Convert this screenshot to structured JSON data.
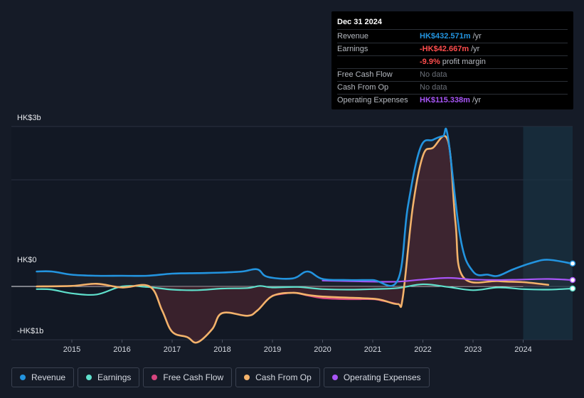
{
  "tooltip": {
    "date": "Dec 31 2024",
    "rows": [
      {
        "label": "Revenue",
        "value": "HK$432.571m",
        "unit": "/yr",
        "color": "#2394df"
      },
      {
        "label": "Earnings",
        "value": "-HK$42.667m",
        "unit": "/yr",
        "color": "#ff4d4d"
      },
      {
        "label": "",
        "value": "-9.9%",
        "unit": "profit margin",
        "color": "#ff4d4d"
      },
      {
        "label": "Free Cash Flow",
        "value": "No data",
        "unit": "",
        "color": ""
      },
      {
        "label": "Cash From Op",
        "value": "No data",
        "unit": "",
        "color": ""
      },
      {
        "label": "Operating Expenses",
        "value": "HK$115.338m",
        "unit": "/yr",
        "color": "#a855f7"
      }
    ]
  },
  "axis": {
    "y_top": "HK$3b",
    "y_zero": "HK$0",
    "y_bottom": "-HK$1b"
  },
  "legend": [
    {
      "label": "Revenue",
      "color": "#2394df"
    },
    {
      "label": "Earnings",
      "color": "#5fe0cc"
    },
    {
      "label": "Free Cash Flow",
      "color": "#d6457f"
    },
    {
      "label": "Cash From Op",
      "color": "#f3b26b"
    },
    {
      "label": "Operating Expenses",
      "color": "#a855f7"
    }
  ],
  "chart_data": {
    "type": "line",
    "x_ticks": [
      "2015",
      "2016",
      "2017",
      "2018",
      "2019",
      "2020",
      "2021",
      "2022",
      "2023",
      "2024"
    ],
    "ylim": [
      -1,
      3
    ],
    "y_unit": "HK$ billions",
    "series": [
      {
        "name": "Revenue",
        "color": "#2394df",
        "points": [
          [
            2014.3,
            0.28
          ],
          [
            2014.6,
            0.28
          ],
          [
            2015.0,
            0.22
          ],
          [
            2015.5,
            0.2
          ],
          [
            2016.0,
            0.2
          ],
          [
            2016.5,
            0.2
          ],
          [
            2017.0,
            0.24
          ],
          [
            2017.5,
            0.25
          ],
          [
            2018.0,
            0.26
          ],
          [
            2018.4,
            0.28
          ],
          [
            2018.7,
            0.32
          ],
          [
            2018.9,
            0.18
          ],
          [
            2019.4,
            0.15
          ],
          [
            2019.7,
            0.28
          ],
          [
            2020.0,
            0.14
          ],
          [
            2020.5,
            0.12
          ],
          [
            2021.0,
            0.12
          ],
          [
            2021.5,
            0.12
          ],
          [
            2021.7,
            1.5
          ],
          [
            2021.95,
            2.6
          ],
          [
            2022.2,
            2.75
          ],
          [
            2022.4,
            2.82
          ],
          [
            2022.5,
            2.8
          ],
          [
            2022.75,
            0.9
          ],
          [
            2023.0,
            0.28
          ],
          [
            2023.3,
            0.22
          ],
          [
            2023.5,
            0.2
          ],
          [
            2023.8,
            0.32
          ],
          [
            2024.2,
            0.45
          ],
          [
            2024.5,
            0.5
          ],
          [
            2024.97,
            0.43
          ]
        ]
      },
      {
        "name": "Earnings",
        "color": "#5fe0cc",
        "points": [
          [
            2014.3,
            -0.05
          ],
          [
            2014.6,
            -0.06
          ],
          [
            2015.0,
            -0.13
          ],
          [
            2015.5,
            -0.15
          ],
          [
            2016.0,
            0.0
          ],
          [
            2016.5,
            -0.01
          ],
          [
            2017.0,
            -0.06
          ],
          [
            2017.5,
            -0.07
          ],
          [
            2018.0,
            -0.04
          ],
          [
            2018.5,
            -0.03
          ],
          [
            2018.75,
            0.01
          ],
          [
            2019.0,
            -0.02
          ],
          [
            2019.5,
            -0.01
          ],
          [
            2020.0,
            -0.05
          ],
          [
            2020.5,
            -0.06
          ],
          [
            2021.0,
            -0.05
          ],
          [
            2021.5,
            -0.03
          ],
          [
            2022.0,
            0.04
          ],
          [
            2022.5,
            -0.01
          ],
          [
            2023.0,
            -0.07
          ],
          [
            2023.5,
            -0.02
          ],
          [
            2024.0,
            -0.05
          ],
          [
            2024.5,
            -0.06
          ],
          [
            2024.97,
            -0.04
          ]
        ]
      },
      {
        "name": "Free Cash Flow",
        "color": "#d6457f",
        "points": [
          [
            2019.0,
            -0.17
          ],
          [
            2019.4,
            -0.12
          ],
          [
            2019.7,
            -0.17
          ],
          [
            2020.0,
            -0.22
          ],
          [
            2020.5,
            -0.24
          ],
          [
            2021.0,
            -0.24
          ],
          [
            2021.2,
            -0.27
          ],
          [
            2021.5,
            -0.33
          ]
        ]
      },
      {
        "name": "Cash From Op",
        "color": "#f3b26b",
        "points": [
          [
            2014.3,
            0.0
          ],
          [
            2015.0,
            0.01
          ],
          [
            2015.5,
            0.05
          ],
          [
            2016.0,
            -0.02
          ],
          [
            2016.55,
            0.0
          ],
          [
            2016.8,
            -0.45
          ],
          [
            2017.0,
            -0.85
          ],
          [
            2017.3,
            -0.95
          ],
          [
            2017.5,
            -1.05
          ],
          [
            2017.8,
            -0.8
          ],
          [
            2018.0,
            -0.5
          ],
          [
            2018.5,
            -0.55
          ],
          [
            2018.7,
            -0.45
          ],
          [
            2019.0,
            -0.18
          ],
          [
            2019.4,
            -0.12
          ],
          [
            2019.7,
            -0.16
          ],
          [
            2020.0,
            -0.19
          ],
          [
            2020.5,
            -0.21
          ],
          [
            2021.0,
            -0.23
          ],
          [
            2021.2,
            -0.26
          ],
          [
            2021.5,
            -0.33
          ],
          [
            2021.6,
            -0.2
          ],
          [
            2021.8,
            1.5
          ],
          [
            2022.0,
            2.45
          ],
          [
            2022.2,
            2.6
          ],
          [
            2022.5,
            2.73
          ],
          [
            2022.65,
            1.2
          ],
          [
            2022.8,
            0.18
          ],
          [
            2023.5,
            0.1
          ],
          [
            2024.0,
            0.08
          ],
          [
            2024.5,
            0.03
          ]
        ]
      },
      {
        "name": "Operating Expenses",
        "color": "#a855f7",
        "points": [
          [
            2020.0,
            0.11
          ],
          [
            2020.5,
            0.1
          ],
          [
            2021.0,
            0.09
          ],
          [
            2021.5,
            0.09
          ],
          [
            2022.0,
            0.13
          ],
          [
            2022.5,
            0.16
          ],
          [
            2023.0,
            0.13
          ],
          [
            2023.5,
            0.12
          ],
          [
            2024.0,
            0.13
          ],
          [
            2024.5,
            0.14
          ],
          [
            2024.97,
            0.12
          ]
        ]
      }
    ]
  }
}
